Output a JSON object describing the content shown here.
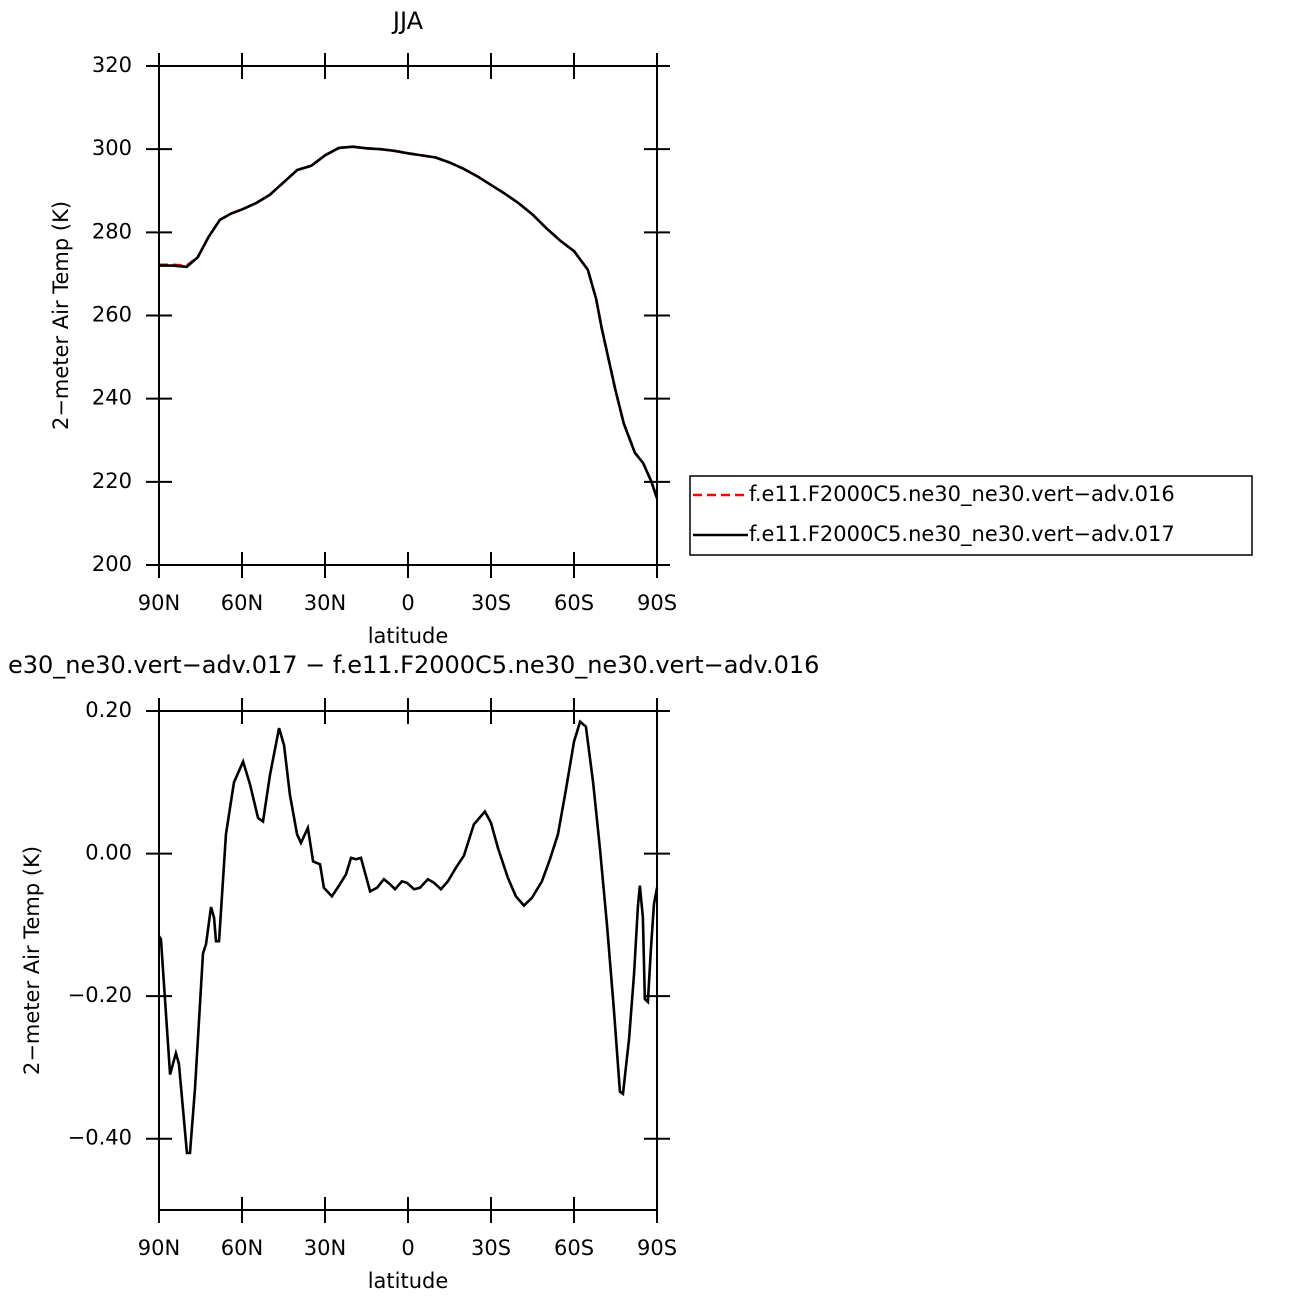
{
  "chart_data": [
    {
      "type": "line",
      "title": "JJA",
      "xlabel": "latitude",
      "ylabel": "2−meter Air Temp (K)",
      "x": [
        90,
        85,
        80,
        76,
        72,
        68,
        64,
        60,
        55,
        50,
        45,
        40,
        35,
        30,
        25,
        20,
        15,
        10,
        5,
        0,
        -5,
        -10,
        -15,
        -20,
        -25,
        -30,
        -35,
        -40,
        -45,
        -50,
        -55,
        -60,
        -65,
        -68,
        -70,
        -75,
        -78,
        -82,
        -85,
        -88,
        -90
      ],
      "series": [
        {
          "name": "f.e11.F2000C5.ne30_ne30.vert−adv.016",
          "color": "#ff0000",
          "linestyle": "dashed",
          "values": [
            272.2,
            272.2,
            272,
            274,
            279,
            283,
            284.5,
            285.5,
            287,
            289,
            292,
            295,
            296,
            298.5,
            300.3,
            300.6,
            300.2,
            300,
            299.6,
            299,
            298.5,
            298,
            296.8,
            295.3,
            293.5,
            291.4,
            289.3,
            287,
            284.3,
            281,
            278,
            275.5,
            271,
            264,
            257,
            242,
            234,
            227,
            224.5,
            220,
            216
          ]
        },
        {
          "name": "f.e11.F2000C5.ne30_ne30.vert−adv.017",
          "color": "#000000",
          "linestyle": "solid",
          "values": [
            272,
            272,
            271.7,
            274,
            279,
            283,
            284.5,
            285.5,
            287,
            289,
            292,
            295,
            296,
            298.5,
            300.3,
            300.6,
            300.2,
            300,
            299.6,
            299,
            298.5,
            298,
            296.8,
            295.3,
            293.5,
            291.4,
            289.3,
            287,
            284.3,
            281,
            278,
            275.5,
            271,
            264,
            257,
            242,
            234,
            227,
            224.5,
            220,
            216
          ]
        }
      ],
      "xlim": [
        90,
        -90
      ],
      "xticks": [
        {
          "value": 90,
          "label": "90N"
        },
        {
          "value": 60,
          "label": "60N"
        },
        {
          "value": 30,
          "label": "30N"
        },
        0,
        {
          "value": -30,
          "label": "30S"
        },
        {
          "value": -60,
          "label": "60S"
        },
        {
          "value": -90,
          "label": "90S"
        }
      ],
      "ylim": [
        200,
        320
      ],
      "yticks": [
        200,
        220,
        240,
        260,
        280,
        300,
        320
      ],
      "legend": "right"
    },
    {
      "type": "line",
      "title": "e30_ne30.vert−adv.017 − f.e11.F2000C5.ne30_ne30.vert−adv.016",
      "xlabel": "latitude",
      "ylabel": "2−meter Air Temp (K)",
      "x": [
        90,
        89.3,
        86,
        83.9,
        82.8,
        79.9,
        78.8,
        77,
        74.1,
        73,
        71.2,
        70.1,
        69.4,
        68.3,
        65.8,
        62.9,
        59.6,
        57.1,
        54.2,
        52.4,
        49.9,
        46.6,
        44.8,
        42.7,
        40.1,
        38.7,
        36.2,
        34.3,
        31.8,
        30.4,
        27.5,
        24.6,
        22.4,
        20.6,
        18.8,
        17,
        13.7,
        11.2,
        8.7,
        6.5,
        4.7,
        2.2,
        0.4,
        -2.2,
        -4.3,
        -7.2,
        -9.4,
        -11.9,
        -14.4,
        -17.3,
        -20.2,
        -23.8,
        -27.8,
        -30,
        -32.5,
        -36.1,
        -39,
        -41.9,
        -44.8,
        -48.4,
        -51.3,
        -54.2,
        -57.1,
        -60,
        -62.2,
        -64.3,
        -66.9,
        -69.4,
        -71.9,
        -74.4,
        -76.6,
        -77.7,
        -79.9,
        -81.7,
        -83.1,
        -83.8,
        -84.9,
        -85.6,
        -86.7,
        -87.8,
        -88.9,
        -90
      ],
      "series": [
        {
          "color": "#000000",
          "linestyle": "solid",
          "values": [
            -0.116,
            -0.12,
            -0.31,
            -0.28,
            -0.295,
            -0.42,
            -0.42,
            -0.33,
            -0.14,
            -0.127,
            -0.075,
            -0.09,
            -0.123,
            -0.123,
            0.027,
            0.1,
            0.129,
            0.097,
            0.05,
            0.045,
            0.11,
            0.176,
            0.152,
            0.083,
            0.027,
            0.015,
            0.036,
            -0.011,
            -0.015,
            -0.048,
            -0.06,
            -0.043,
            -0.029,
            -0.006,
            -0.008,
            -0.006,
            -0.053,
            -0.048,
            -0.036,
            -0.043,
            -0.05,
            -0.039,
            -0.041,
            -0.05,
            -0.048,
            -0.036,
            -0.041,
            -0.05,
            -0.039,
            -0.02,
            -0.003,
            0.041,
            0.059,
            0.043,
            0.008,
            -0.034,
            -0.06,
            -0.073,
            -0.062,
            -0.039,
            -0.008,
            0.027,
            0.09,
            0.157,
            0.185,
            0.178,
            0.1,
            0.006,
            -0.099,
            -0.218,
            -0.334,
            -0.337,
            -0.26,
            -0.169,
            -0.074,
            -0.045,
            -0.09,
            -0.204,
            -0.208,
            -0.134,
            -0.071,
            -0.048
          ]
        }
      ],
      "xlim": [
        90,
        -90
      ],
      "xticks": [
        {
          "value": 90,
          "label": "90N"
        },
        {
          "value": 60,
          "label": "60N"
        },
        {
          "value": 30,
          "label": "30N"
        },
        0,
        {
          "value": -30,
          "label": "30S"
        },
        {
          "value": -60,
          "label": "60S"
        },
        {
          "value": -90,
          "label": "90S"
        }
      ],
      "ylim": [
        -0.5,
        0.2
      ],
      "yticks": [
        {
          "value": -0.4,
          "label": "−0.40"
        },
        {
          "value": -0.2,
          "label": "−0.20"
        },
        {
          "value": 0,
          "label": "0.00"
        },
        {
          "value": 0.2,
          "label": "0.20"
        }
      ]
    }
  ]
}
